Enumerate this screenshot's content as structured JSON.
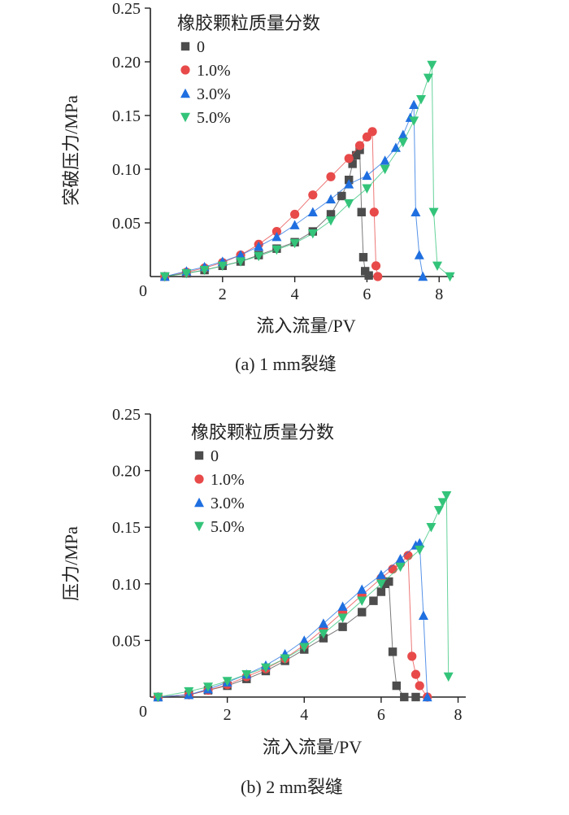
{
  "chart_data": [
    {
      "type": "scatter",
      "caption": "(a) 1 mm裂缝",
      "xlabel": "流入流量/PV",
      "ylabel": "突破压力/MPa",
      "xlim": [
        0,
        8.4
      ],
      "ylim": [
        0,
        0.25
      ],
      "xticks": [
        0,
        2,
        4,
        6,
        8
      ],
      "yticks": [
        0.05,
        0.1,
        0.15,
        0.2,
        0.25
      ],
      "xtick_labels": [
        "0",
        "2",
        "4",
        "6",
        "8"
      ],
      "ytick_labels": [
        "0.05",
        "0.10",
        "0.15",
        "0.20",
        "0.25"
      ],
      "legend": {
        "title": "橡胶颗粒质量分数",
        "position": "top-left"
      },
      "series": [
        {
          "name": "0",
          "color": "#4d4d4d",
          "marker": "square",
          "x": [
            0.4,
            1.0,
            1.5,
            2.0,
            2.5,
            3.0,
            3.5,
            4.0,
            4.5,
            5.0,
            5.3,
            5.5,
            5.6,
            5.7,
            5.8,
            5.85,
            5.9,
            5.95,
            6.05
          ],
          "y": [
            0.0,
            0.003,
            0.006,
            0.01,
            0.014,
            0.02,
            0.026,
            0.032,
            0.042,
            0.058,
            0.075,
            0.09,
            0.105,
            0.113,
            0.118,
            0.06,
            0.018,
            0.005,
            0.001
          ]
        },
        {
          "name": "1.0%",
          "color": "#e84a4a",
          "marker": "circle",
          "x": [
            0.4,
            1.0,
            1.5,
            2.0,
            2.5,
            3.0,
            3.5,
            4.0,
            4.5,
            5.0,
            5.5,
            5.8,
            6.0,
            6.15,
            6.2,
            6.25,
            6.3
          ],
          "y": [
            0.0,
            0.004,
            0.008,
            0.013,
            0.02,
            0.03,
            0.042,
            0.058,
            0.076,
            0.093,
            0.11,
            0.122,
            0.13,
            0.135,
            0.06,
            0.01,
            0.0
          ]
        },
        {
          "name": "3.0%",
          "color": "#1f6fe0",
          "marker": "triangle-up",
          "x": [
            0.4,
            1.0,
            1.5,
            2.0,
            2.5,
            3.0,
            3.5,
            4.0,
            4.5,
            5.0,
            5.5,
            6.0,
            6.5,
            6.8,
            7.0,
            7.2,
            7.3,
            7.35,
            7.45,
            7.55
          ],
          "y": [
            0.0,
            0.005,
            0.009,
            0.014,
            0.02,
            0.028,
            0.037,
            0.048,
            0.06,
            0.072,
            0.086,
            0.094,
            0.108,
            0.12,
            0.132,
            0.148,
            0.16,
            0.06,
            0.02,
            0.0
          ]
        },
        {
          "name": "5.0%",
          "color": "#33c47a",
          "marker": "triangle-down",
          "x": [
            0.4,
            1.0,
            1.5,
            2.0,
            2.5,
            3.0,
            3.5,
            4.0,
            4.5,
            5.0,
            5.5,
            6.0,
            6.5,
            7.0,
            7.3,
            7.5,
            7.7,
            7.8,
            7.85,
            7.95,
            8.3
          ],
          "y": [
            0.0,
            0.003,
            0.006,
            0.01,
            0.014,
            0.019,
            0.025,
            0.031,
            0.04,
            0.052,
            0.068,
            0.082,
            0.1,
            0.125,
            0.145,
            0.165,
            0.185,
            0.197,
            0.06,
            0.01,
            0.0
          ]
        }
      ]
    },
    {
      "type": "scatter",
      "caption": "(b) 2 mm裂缝",
      "xlabel": "流入流量/PV",
      "ylabel": "压力/MPa",
      "xlim": [
        0,
        8.2
      ],
      "ylim": [
        0,
        0.25
      ],
      "xticks": [
        0,
        2,
        4,
        6,
        8
      ],
      "yticks": [
        0.05,
        0.1,
        0.15,
        0.2,
        0.25
      ],
      "xtick_labels": [
        "0",
        "2",
        "4",
        "6",
        "8"
      ],
      "ytick_labels": [
        "0.05",
        "0.10",
        "0.15",
        "0.20",
        "0.25"
      ],
      "legend": {
        "title": "橡胶颗粒质量分数",
        "position": "top-left"
      },
      "series": [
        {
          "name": "0",
          "color": "#4d4d4d",
          "marker": "square",
          "x": [
            0.2,
            1.0,
            1.5,
            2.0,
            2.5,
            3.0,
            3.5,
            4.0,
            4.5,
            5.0,
            5.5,
            5.8,
            6.0,
            6.1,
            6.2,
            6.3,
            6.4,
            6.6,
            6.9
          ],
          "y": [
            0.0,
            0.002,
            0.006,
            0.01,
            0.016,
            0.023,
            0.032,
            0.042,
            0.052,
            0.062,
            0.075,
            0.085,
            0.093,
            0.1,
            0.102,
            0.04,
            0.01,
            0.0,
            0.0
          ]
        },
        {
          "name": "1.0%",
          "color": "#e84a4a",
          "marker": "circle",
          "x": [
            0.2,
            1.0,
            1.5,
            2.0,
            2.5,
            3.0,
            3.5,
            4.0,
            4.5,
            5.0,
            5.5,
            6.0,
            6.3,
            6.5,
            6.7,
            6.8,
            6.9,
            7.0,
            7.2
          ],
          "y": [
            0.0,
            0.002,
            0.006,
            0.011,
            0.018,
            0.025,
            0.034,
            0.046,
            0.06,
            0.075,
            0.09,
            0.105,
            0.113,
            0.118,
            0.125,
            0.036,
            0.02,
            0.01,
            0.0
          ]
        },
        {
          "name": "3.0%",
          "color": "#1f6fe0",
          "marker": "triangle-up",
          "x": [
            0.2,
            1.0,
            1.5,
            2.0,
            2.5,
            3.0,
            3.5,
            4.0,
            4.5,
            5.0,
            5.5,
            6.0,
            6.5,
            6.9,
            7.0,
            7.1,
            7.2
          ],
          "y": [
            0.0,
            0.002,
            0.007,
            0.013,
            0.02,
            0.028,
            0.038,
            0.05,
            0.065,
            0.08,
            0.095,
            0.108,
            0.122,
            0.134,
            0.136,
            0.072,
            0.0
          ]
        },
        {
          "name": "5.0%",
          "color": "#33c47a",
          "marker": "triangle-down",
          "x": [
            0.2,
            1.0,
            1.5,
            2.0,
            2.5,
            3.0,
            3.5,
            4.0,
            4.5,
            5.0,
            5.5,
            6.0,
            6.5,
            7.0,
            7.3,
            7.5,
            7.6,
            7.7,
            7.75
          ],
          "y": [
            0.0,
            0.005,
            0.009,
            0.014,
            0.02,
            0.026,
            0.034,
            0.044,
            0.056,
            0.07,
            0.085,
            0.1,
            0.115,
            0.13,
            0.15,
            0.165,
            0.172,
            0.178,
            0.018
          ]
        }
      ]
    }
  ]
}
